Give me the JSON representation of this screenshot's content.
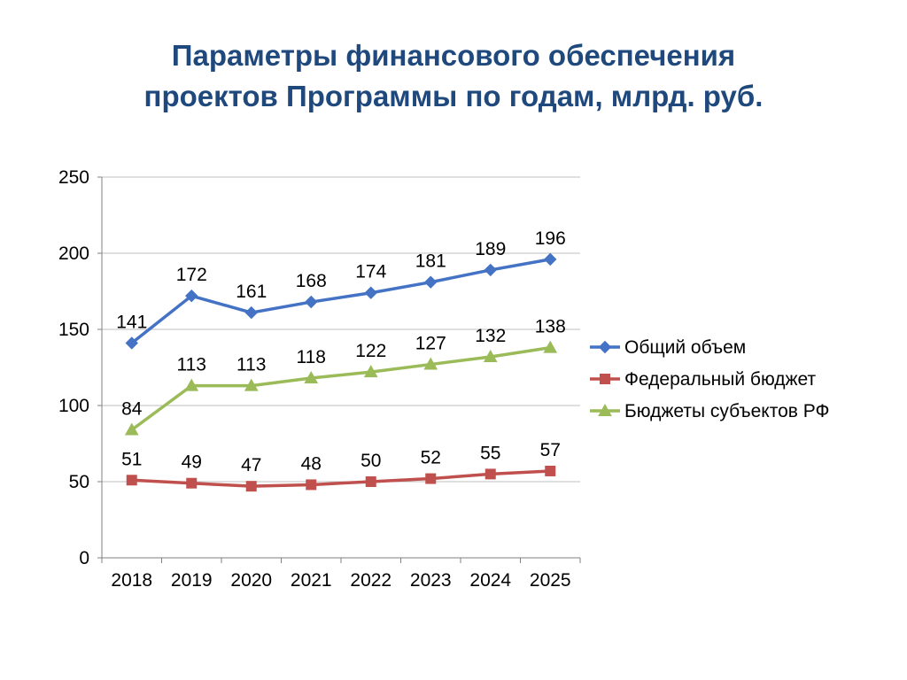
{
  "header": {
    "title_line1": "Параметры финансового обеспечения",
    "title_line2": "проектов Программы по годам, млрд. руб."
  },
  "chart_data": {
    "type": "line",
    "title": "Параметры финансового обеспечения проектов Программы по годам, млрд. руб.",
    "categories": [
      "2018",
      "2019",
      "2020",
      "2021",
      "2022",
      "2023",
      "2024",
      "2025"
    ],
    "series": [
      {
        "name": "Общий объем",
        "values": [
          141,
          172,
          161,
          168,
          174,
          181,
          189,
          196
        ],
        "color": "#4472C4",
        "marker": "diamond"
      },
      {
        "name": "Федеральный бюджет",
        "values": [
          51,
          49,
          47,
          48,
          50,
          52,
          55,
          57
        ],
        "color": "#C0504D",
        "marker": "square"
      },
      {
        "name": "Бюджеты субъектов РФ",
        "values": [
          84,
          113,
          113,
          118,
          122,
          127,
          132,
          138
        ],
        "color": "#9BBB59",
        "marker": "triangle"
      }
    ],
    "ylim": [
      0,
      250
    ],
    "yticks": [
      0,
      50,
      100,
      150,
      200,
      250
    ],
    "grid": true,
    "data_labels": true,
    "legend_position": "right",
    "xlabel": "",
    "ylabel": ""
  },
  "colors": {
    "title": "#1F497D",
    "grid": "#BFBFBF",
    "axis": "#808080",
    "label": "#000000"
  }
}
